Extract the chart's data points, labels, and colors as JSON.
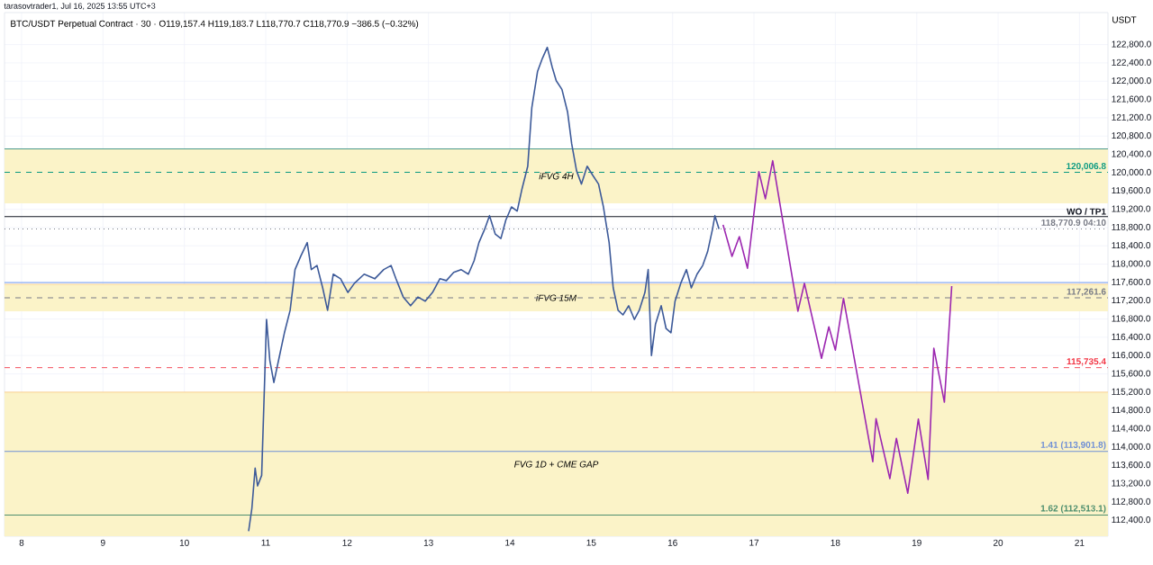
{
  "chart_data": {
    "type": "line",
    "title": "BTC/USDT Perpetual Contract · 30 · O119,157.4 H119,183.7 L118,770.7 C118,770.9 −386.5 (−0.32%)",
    "ylabel": "USDT",
    "annotations": [
      "tarasovtrader1, Jul 16, 2025 13:55 UTC+3"
    ],
    "xlim": [
      7.79,
      21.35
    ],
    "xticks": [
      8,
      9,
      10,
      11,
      12,
      13,
      14,
      15,
      16,
      17,
      18,
      19,
      20,
      21
    ],
    "ylim": [
      112050,
      123500
    ],
    "yticks": [
      {
        "value": 112400,
        "label": "112,400.0"
      },
      {
        "value": 112800,
        "label": "112,800.0"
      },
      {
        "value": 113200,
        "label": "113,200.0"
      },
      {
        "value": 113600,
        "label": "113,600.0"
      },
      {
        "value": 114000,
        "label": "114,000.0"
      },
      {
        "value": 114400,
        "label": "114,400.0"
      },
      {
        "value": 114800,
        "label": "114,800.0"
      },
      {
        "value": 115200,
        "label": "115,200.0"
      },
      {
        "value": 115600,
        "label": "115,600.0"
      },
      {
        "value": 116000,
        "label": "116,000.0"
      },
      {
        "value": 116400,
        "label": "116,400.0"
      },
      {
        "value": 116800,
        "label": "116,800.0"
      },
      {
        "value": 117200,
        "label": "117,200.0"
      },
      {
        "value": 117600,
        "label": "117,600.0"
      },
      {
        "value": 118000,
        "label": "118,000.0"
      },
      {
        "value": 118400,
        "label": "118,400.0"
      },
      {
        "value": 118800,
        "label": "118,800.0"
      },
      {
        "value": 119200,
        "label": "119,200.0"
      },
      {
        "value": 119600,
        "label": "119,600.0"
      },
      {
        "value": 120000,
        "label": "120,000.0"
      },
      {
        "value": 120400,
        "label": "120,400.0"
      },
      {
        "value": 120800,
        "label": "120,800.0"
      },
      {
        "value": 121200,
        "label": "121,200.0"
      },
      {
        "value": 121600,
        "label": "121,600.0"
      },
      {
        "value": 122000,
        "label": "122,000.0"
      },
      {
        "value": 122400,
        "label": "122,400.0"
      },
      {
        "value": 122800,
        "label": "122,800.0"
      }
    ],
    "grid": true,
    "bands": [
      {
        "axis": "y",
        "from": 119330,
        "to": 120520,
        "label": "iFVG 4H",
        "color": "#fbf3c8"
      },
      {
        "axis": "y",
        "from": 116970,
        "to": 117560,
        "label": "iFVG 15M",
        "color": "#fbf3c8"
      },
      {
        "axis": "y",
        "from": 112050,
        "to": 115200,
        "label": "FVG 1D + CME GAP",
        "color": "#fbf3c8"
      }
    ],
    "ref_lines": [
      {
        "axis": "y",
        "value": 120520,
        "color": "#4a9a8f",
        "line_style": "solid"
      },
      {
        "axis": "y",
        "value": 120006.8,
        "label": "120,006.8",
        "color": "#089981",
        "line_style": "dashed"
      },
      {
        "axis": "y",
        "value": 119040,
        "label": "WO / TP1",
        "color": "#131722",
        "line_style": "solid"
      },
      {
        "axis": "y",
        "value": 118770.9,
        "label": "118,770.9 04:10",
        "color": "#787b86",
        "line_style": "dotted"
      },
      {
        "axis": "y",
        "value": 117600,
        "color": "#5b8def",
        "line_style": "solid"
      },
      {
        "axis": "y",
        "value": 117261.6,
        "label": "117,261.6",
        "color": "#787b86",
        "line_style": "dashed"
      },
      {
        "axis": "y",
        "value": 115735.4,
        "label": "115,735.4",
        "color": "#f23645",
        "line_style": "dashed"
      },
      {
        "axis": "y",
        "value": 113901.8,
        "label": "1.41 (113,901.8)",
        "color": "#6f8fd6",
        "line_style": "solid"
      },
      {
        "axis": "y",
        "value": 112513.1,
        "label": "1.62 (112,513.1)",
        "color": "#4e8f6e",
        "line_style": "solid"
      }
    ],
    "series": [
      {
        "color": "#3d5a99",
        "x": [
          10.79,
          10.83,
          10.87,
          10.9,
          10.95,
          11.01,
          11.05,
          11.1,
          11.17,
          11.23,
          11.3,
          11.36,
          11.43,
          11.51,
          11.56,
          11.63,
          11.7,
          11.76,
          11.83,
          11.92,
          12.01,
          12.09,
          12.21,
          12.34,
          12.45,
          12.54,
          12.6,
          12.69,
          12.78,
          12.87,
          12.96,
          13.05,
          13.14,
          13.22,
          13.31,
          13.4,
          13.49,
          13.56,
          13.62,
          13.69,
          13.75,
          13.82,
          13.89,
          13.95,
          14.02,
          14.09,
          14.15,
          14.22,
          14.27,
          14.34,
          14.4,
          14.46,
          14.52,
          14.57,
          14.64,
          14.71,
          14.76,
          14.82,
          14.88,
          14.95,
          15.02,
          15.09,
          15.15,
          15.22,
          15.27,
          15.33,
          15.39,
          15.46,
          15.53,
          15.59,
          15.66,
          15.7,
          15.74,
          15.79,
          15.86,
          15.92,
          15.98,
          16.03,
          16.1,
          16.17,
          16.23,
          16.3,
          16.37,
          16.43,
          16.49,
          16.52,
          16.57
        ],
        "values": [
          112160,
          112660,
          113540,
          113150,
          113380,
          116790,
          115900,
          115410,
          116000,
          116500,
          116990,
          117880,
          118170,
          118470,
          117880,
          117970,
          117480,
          116990,
          117780,
          117680,
          117380,
          117580,
          117780,
          117680,
          117880,
          117970,
          117680,
          117280,
          117090,
          117280,
          117190,
          117380,
          117680,
          117640,
          117820,
          117880,
          117780,
          118070,
          118470,
          118760,
          119060,
          118660,
          118560,
          118960,
          119250,
          119160,
          119650,
          120140,
          121420,
          122210,
          122500,
          122740,
          122310,
          122010,
          121820,
          121320,
          120630,
          120040,
          119750,
          120140,
          119940,
          119750,
          119250,
          118470,
          117480,
          116990,
          116890,
          117090,
          116790,
          116990,
          117380,
          117880,
          116000,
          116690,
          117090,
          116590,
          116500,
          117190,
          117580,
          117880,
          117480,
          117780,
          117970,
          118270,
          118760,
          119060,
          118770
        ]
      },
      {
        "color": "#9c27b0",
        "x": [
          16.62,
          16.73,
          16.82,
          16.92,
          17.06,
          17.14,
          17.23,
          17.54,
          17.62,
          17.83,
          17.92,
          18.0,
          18.1,
          18.46,
          18.5,
          18.67,
          18.75,
          18.89,
          19.02,
          19.14,
          19.21,
          19.34,
          19.43
        ],
        "values": [
          118860,
          118170,
          118600,
          117910,
          120020,
          119430,
          120260,
          116970,
          117580,
          115940,
          116630,
          116120,
          117250,
          113680,
          114620,
          113310,
          114190,
          112990,
          114610,
          113290,
          116160,
          114980,
          117520
        ]
      }
    ]
  }
}
